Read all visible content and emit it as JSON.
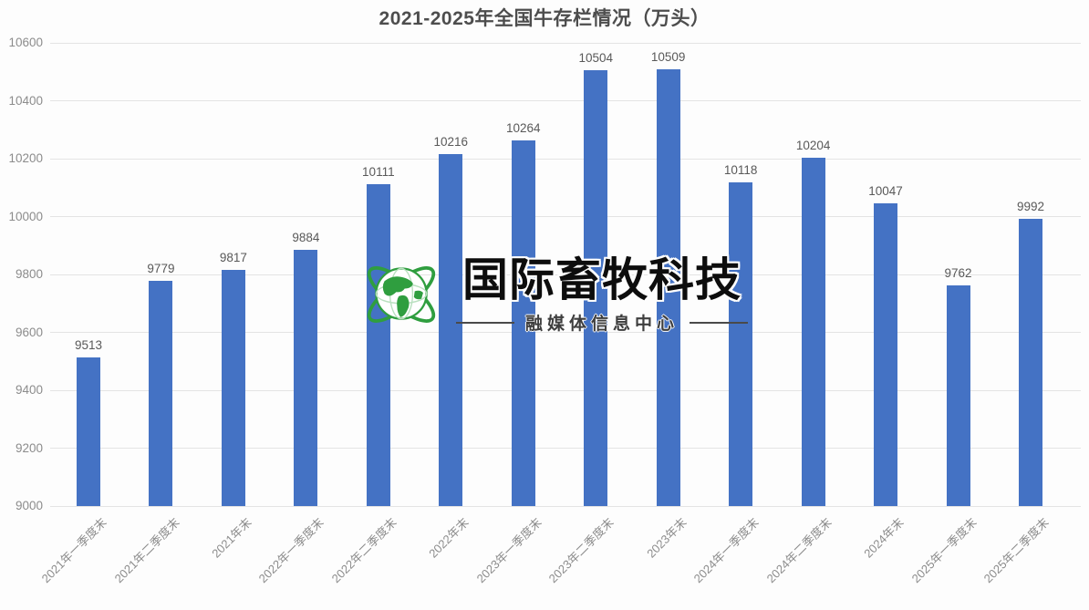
{
  "title": "2021-2025年全国牛存栏情况（万头）",
  "watermark": {
    "logo_icon": "globe-orbit-icon",
    "brand": "国际畜牧科技",
    "subtitle": "融媒体信息中心"
  },
  "colors": {
    "bar": "#4472c4",
    "gridline": "#e4e4e4",
    "title_text": "#4d4d4d",
    "axis_text": "#8c8c8c",
    "value_text": "#595959",
    "watermark_green": "#2f9e3f",
    "background": "#fdfdfd"
  },
  "chart_data": {
    "type": "bar",
    "title": "2021-2025年全国牛存栏情况（万头）",
    "categories": [
      "2021年一季度末",
      "2021年二季度末",
      "2021年末",
      "2022年一季度末",
      "2022年二季度末",
      "2022年末",
      "2023年一季度末",
      "2023年二季度末",
      "2023年末",
      "2024年一季度末",
      "2024年二季度末",
      "2024年末",
      "2025年一季度末",
      "2025年二季度末"
    ],
    "values": [
      9513,
      9779,
      9817,
      9884,
      10111,
      10216,
      10264,
      10504,
      10509,
      10118,
      10204,
      10047,
      9762,
      9992
    ],
    "xlabel": "",
    "ylabel": "",
    "ylim": [
      9000,
      10600
    ],
    "yticks": [
      9000,
      9200,
      9400,
      9600,
      9800,
      10000,
      10200,
      10400,
      10600
    ],
    "grid": true,
    "legend": false,
    "bar_color": "#4472c4",
    "value_labels": true,
    "x_label_rotation_deg": -45
  }
}
